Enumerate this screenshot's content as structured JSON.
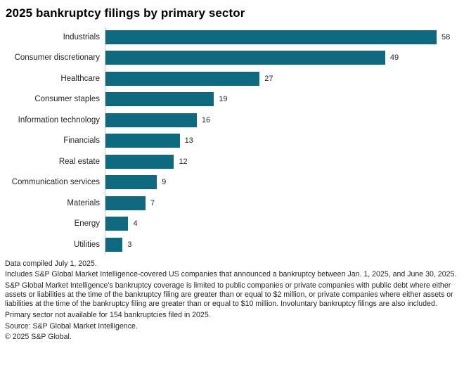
{
  "title": "2025 bankruptcy filings by primary sector",
  "chart_data": {
    "type": "bar",
    "orientation": "horizontal",
    "title": "2025 bankruptcy filings by primary sector",
    "categories": [
      "Industrials",
      "Consumer discretionary",
      "Healthcare",
      "Consumer staples",
      "Information technology",
      "Financials",
      "Real estate",
      "Communication services",
      "Materials",
      "Energy",
      "Utilities"
    ],
    "values": [
      58,
      49,
      27,
      19,
      16,
      13,
      12,
      9,
      7,
      4,
      3
    ],
    "xlabel": "",
    "ylabel": "",
    "xlim": [
      0,
      60
    ],
    "grid": false,
    "value_labels": true,
    "legend": "none",
    "bar_color": "#0f6a80",
    "axis_line_color": "#c9c9c9"
  },
  "footnotes": [
    "Data compiled July 1, 2025.",
    "Includes S&P Global Market Intelligence-covered US companies that announced a bankruptcy between Jan. 1, 2025, and June 30, 2025.",
    "S&P Global Market Intelligence's bankruptcy coverage is limited to public companies or private companies with public debt where either assets or liabilities at the time of the bankruptcy filing are greater than or equal to $2 million, or private companies where either assets or liabilities at the time of the bankruptcy filing are greater than or equal to $10 million. Involuntary bankruptcy filings are also included.",
    "Primary sector not available for 154 bankruptcies filed in 2025.",
    "Source: S&P Global Market Intelligence.",
    "© 2025 S&P Global."
  ]
}
